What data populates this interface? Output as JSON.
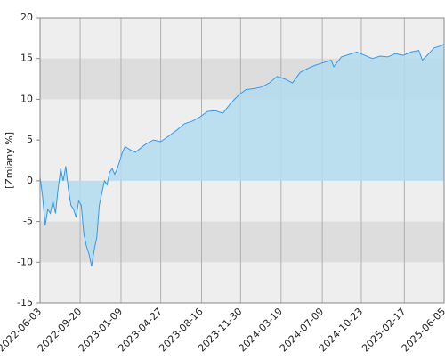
{
  "chart_data": {
    "type": "area",
    "y_label": "[Zmiany %]",
    "x": [
      "2022-06-03",
      "2022-06-10",
      "2022-06-17",
      "2022-06-24",
      "2022-07-01",
      "2022-07-08",
      "2022-07-15",
      "2022-07-22",
      "2022-07-29",
      "2022-08-05",
      "2022-08-12",
      "2022-08-19",
      "2022-08-26",
      "2022-09-02",
      "2022-09-09",
      "2022-09-16",
      "2022-09-23",
      "2022-09-30",
      "2022-10-07",
      "2022-10-14",
      "2022-10-21",
      "2022-10-28",
      "2022-11-04",
      "2022-11-11",
      "2022-11-18",
      "2022-11-25",
      "2022-12-02",
      "2022-12-09",
      "2022-12-16",
      "2022-12-23",
      "2022-12-30",
      "2023-01-06",
      "2023-01-13",
      "2023-01-20",
      "2023-02-03",
      "2023-02-17",
      "2023-03-03",
      "2023-03-17",
      "2023-04-07",
      "2023-04-27",
      "2023-05-19",
      "2023-06-09",
      "2023-06-30",
      "2023-07-21",
      "2023-08-11",
      "2023-09-01",
      "2023-09-22",
      "2023-10-13",
      "2023-11-03",
      "2023-11-24",
      "2023-12-15",
      "2024-01-05",
      "2024-01-26",
      "2024-02-16",
      "2024-03-08",
      "2024-03-29",
      "2024-04-19",
      "2024-05-10",
      "2024-05-31",
      "2024-06-21",
      "2024-07-12",
      "2024-08-02",
      "2024-08-09",
      "2024-08-30",
      "2024-09-20",
      "2024-10-11",
      "2024-11-01",
      "2024-11-22",
      "2024-12-13",
      "2025-01-03",
      "2025-01-24",
      "2025-02-14",
      "2025-03-07",
      "2025-03-28",
      "2025-04-07",
      "2025-04-18",
      "2025-05-09",
      "2025-05-30",
      "2025-06-05"
    ],
    "values": [
      0.5,
      -2,
      -5.5,
      -3.5,
      -4,
      -2.5,
      -4,
      -1,
      1.5,
      0,
      1.8,
      -1,
      -3,
      -3.5,
      -4.5,
      -2.5,
      -3,
      -6.5,
      -8,
      -9,
      -10.5,
      -8.5,
      -7,
      -3,
      -1.5,
      0,
      -0.5,
      1,
      1.5,
      0.8,
      1.5,
      2.5,
      3.5,
      4.2,
      3.8,
      3.5,
      4,
      4.5,
      5,
      4.8,
      5.5,
      6.2,
      7,
      7.3,
      7.8,
      8.5,
      8.6,
      8.3,
      9.5,
      10.5,
      11.2,
      11.3,
      11.5,
      12,
      12.8,
      12.5,
      12,
      13.3,
      13.8,
      14.2,
      14.5,
      14.8,
      14,
      15.2,
      15.5,
      15.8,
      15.4,
      15,
      15.3,
      15.2,
      15.6,
      15.4,
      15.8,
      16,
      14.8,
      15.3,
      16.3,
      16.6,
      16.8
    ],
    "line_color": "#3399ee",
    "fill_color": "#b3dcee",
    "xlim": [
      "2022-06-03",
      "2025-06-05"
    ],
    "xticks": [
      "2022-06-03",
      "2022-09-20",
      "2023-01-09",
      "2023-04-27",
      "2023-08-16",
      "2023-11-30",
      "2024-03-19",
      "2024-07-09",
      "2024-10-23",
      "2025-02-17",
      "2025-06-05"
    ],
    "ylim": [
      -15,
      20
    ],
    "yticks": [
      -15,
      -10,
      -5,
      0,
      5,
      10,
      15,
      20
    ],
    "grid": true
  }
}
